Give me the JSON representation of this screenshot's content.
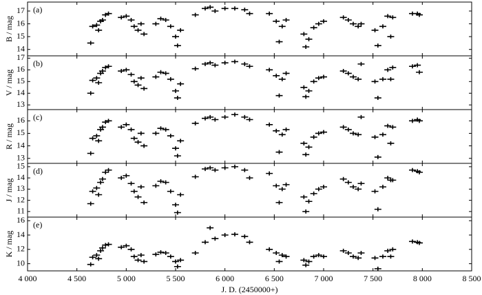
{
  "chart_data": [
    {
      "type": "scatter",
      "panel_label": "(a)",
      "y_label": "B / mag",
      "color": "#000000",
      "x": [
        4640,
        4660,
        4700,
        4720,
        4740,
        4760,
        4790,
        4820,
        4950,
        5000,
        5050,
        5080,
        5120,
        5150,
        5180,
        5300,
        5350,
        5400,
        5450,
        5500,
        5520,
        5550,
        5700,
        5800,
        5850,
        5900,
        6000,
        6100,
        6200,
        6250,
        6450,
        6520,
        6550,
        6580,
        6620,
        6800,
        6820,
        6850,
        6900,
        6950,
        7000,
        7200,
        7250,
        7300,
        7350,
        7380,
        7520,
        7550,
        7600,
        7650,
        7680,
        7700,
        7900,
        7950,
        7970
      ],
      "values": [
        14.5,
        15.8,
        15.9,
        15.5,
        16.2,
        16.3,
        16.7,
        16.8,
        16.5,
        16.6,
        16.3,
        15.8,
        15.5,
        16.0,
        15.2,
        16.0,
        16.4,
        16.3,
        15.8,
        15.0,
        14.3,
        15.5,
        16.7,
        17.2,
        17.3,
        17.0,
        17.2,
        17.2,
        17.1,
        16.8,
        16.8,
        16.2,
        14.6,
        15.8,
        16.3,
        15.2,
        14.2,
        14.8,
        15.7,
        16.0,
        16.2,
        16.5,
        16.3,
        16.0,
        15.8,
        16.0,
        15.5,
        14.3,
        15.8,
        16.6,
        15.0,
        16.5,
        16.8,
        16.8,
        16.7
      ],
      "ylim": [
        13.5,
        17.7
      ],
      "yticks": [
        14,
        15,
        16,
        17
      ]
    },
    {
      "type": "scatter",
      "panel_label": "(b)",
      "y_label": "V / mag",
      "color": "#000000",
      "x": [
        4640,
        4660,
        4700,
        4720,
        4740,
        4760,
        4790,
        4820,
        4950,
        5000,
        5050,
        5080,
        5120,
        5150,
        5180,
        5300,
        5350,
        5400,
        5450,
        5500,
        5520,
        5550,
        5700,
        5800,
        5850,
        5900,
        6000,
        6100,
        6200,
        6250,
        6450,
        6520,
        6550,
        6580,
        6620,
        6800,
        6820,
        6850,
        6900,
        6950,
        7000,
        7200,
        7250,
        7300,
        7350,
        7380,
        7520,
        7550,
        7600,
        7650,
        7680,
        7700,
        7900,
        7950,
        7970
      ],
      "values": [
        14.0,
        15.1,
        15.3,
        14.9,
        15.7,
        15.9,
        16.2,
        16.3,
        15.9,
        16.0,
        15.6,
        15.0,
        14.7,
        15.3,
        14.4,
        15.4,
        15.8,
        15.7,
        15.2,
        14.2,
        13.6,
        14.8,
        16.1,
        16.5,
        16.6,
        16.4,
        16.6,
        16.7,
        16.5,
        16.3,
        16.0,
        15.5,
        13.8,
        15.2,
        15.7,
        14.5,
        13.7,
        14.2,
        15.0,
        15.3,
        15.4,
        15.9,
        15.7,
        15.4,
        15.2,
        16.5,
        15.0,
        13.6,
        15.2,
        16.0,
        15.2,
        16.2,
        16.3,
        16.4,
        15.8
      ],
      "ylim": [
        12.6,
        17.2
      ],
      "yticks": [
        13,
        14,
        15,
        16,
        17
      ]
    },
    {
      "type": "scatter",
      "panel_label": "(c)",
      "y_label": "R / mag",
      "color": "#000000",
      "x": [
        4640,
        4660,
        4700,
        4720,
        4740,
        4760,
        4790,
        4820,
        4950,
        5000,
        5050,
        5080,
        5120,
        5150,
        5180,
        5300,
        5350,
        5400,
        5450,
        5500,
        5520,
        5550,
        5700,
        5800,
        5850,
        5900,
        6000,
        6100,
        6200,
        6250,
        6450,
        6520,
        6550,
        6580,
        6620,
        6800,
        6820,
        6850,
        6900,
        6950,
        7000,
        7200,
        7250,
        7300,
        7350,
        7380,
        7520,
        7550,
        7600,
        7650,
        7680,
        7700,
        7900,
        7950,
        7970
      ],
      "values": [
        13.4,
        14.6,
        14.8,
        14.4,
        15.3,
        15.5,
        15.9,
        16.0,
        15.5,
        15.7,
        15.3,
        14.6,
        14.3,
        15.0,
        14.0,
        15.0,
        15.4,
        15.3,
        14.8,
        13.8,
        13.2,
        14.4,
        15.8,
        16.2,
        16.3,
        16.1,
        16.3,
        16.5,
        16.3,
        16.1,
        15.7,
        15.2,
        13.5,
        14.9,
        15.3,
        14.2,
        13.3,
        13.9,
        14.7,
        15.0,
        15.1,
        15.5,
        15.3,
        15.0,
        14.9,
        16.3,
        14.7,
        13.1,
        14.9,
        15.6,
        14.2,
        15.5,
        16.0,
        16.1,
        16.0
      ],
      "ylim": [
        12.6,
        16.9
      ],
      "yticks": [
        13,
        14,
        15,
        16
      ]
    },
    {
      "type": "scatter",
      "panel_label": "(d)",
      "y_label": "J / mag",
      "color": "#000000",
      "x": [
        4640,
        4660,
        4700,
        4720,
        4740,
        4760,
        4790,
        4820,
        4950,
        5000,
        5050,
        5080,
        5120,
        5150,
        5180,
        5300,
        5350,
        5400,
        5450,
        5500,
        5520,
        5550,
        5700,
        5800,
        5850,
        5900,
        6000,
        6100,
        6200,
        6250,
        6450,
        6520,
        6550,
        6580,
        6620,
        6800,
        6820,
        6850,
        6900,
        6950,
        7000,
        7200,
        7250,
        7300,
        7350,
        7380,
        7520,
        7550,
        7600,
        7650,
        7680,
        7700,
        7900,
        7950,
        7970
      ],
      "values": [
        11.7,
        12.8,
        13.1,
        12.5,
        13.6,
        13.9,
        14.5,
        14.7,
        14.0,
        14.2,
        13.5,
        12.8,
        12.3,
        13.2,
        11.8,
        13.3,
        13.7,
        13.6,
        12.8,
        11.6,
        10.9,
        12.5,
        14.1,
        14.8,
        14.9,
        14.7,
        14.9,
        15.0,
        14.7,
        14.0,
        14.4,
        13.3,
        11.8,
        13.0,
        13.4,
        12.3,
        11.0,
        11.9,
        12.6,
        13.0,
        13.2,
        13.9,
        13.6,
        13.2,
        13.0,
        13.5,
        12.8,
        11.2,
        13.2,
        14.0,
        13.8,
        13.8,
        14.7,
        14.6,
        14.5
      ],
      "ylim": [
        10.5,
        15.3
      ],
      "yticks": [
        11,
        12,
        13,
        14,
        15
      ]
    },
    {
      "type": "scatter",
      "panel_label": "(e)",
      "y_label": "K / mag",
      "color": "#000000",
      "x": [
        4640,
        4660,
        4700,
        4720,
        4740,
        4760,
        4790,
        4820,
        4950,
        5000,
        5050,
        5080,
        5120,
        5150,
        5180,
        5300,
        5350,
        5400,
        5450,
        5500,
        5520,
        5550,
        5700,
        5800,
        5850,
        5900,
        6000,
        6100,
        6200,
        6250,
        6450,
        6520,
        6550,
        6580,
        6620,
        6800,
        6820,
        6850,
        6900,
        6950,
        7000,
        7200,
        7250,
        7300,
        7350,
        7380,
        7520,
        7550,
        7600,
        7650,
        7680,
        7700,
        7900,
        7950,
        7970
      ],
      "values": [
        9.9,
        10.9,
        11.2,
        10.7,
        11.8,
        12.2,
        12.6,
        12.7,
        12.3,
        12.5,
        12.0,
        11.0,
        10.5,
        11.2,
        10.3,
        11.3,
        11.6,
        11.5,
        11.0,
        10.3,
        9.6,
        10.5,
        11.5,
        13.0,
        15.0,
        13.5,
        14.0,
        14.1,
        13.8,
        13.0,
        12.0,
        11.5,
        10.3,
        11.2,
        11.0,
        10.5,
        9.8,
        10.3,
        11.0,
        11.2,
        11.0,
        11.8,
        11.5,
        11.0,
        10.8,
        11.5,
        10.8,
        9.3,
        11.0,
        11.8,
        11.0,
        12.0,
        13.1,
        13.0,
        12.9
      ],
      "ylim": [
        9,
        16.5
      ],
      "yticks": [
        10,
        12,
        14,
        16
      ],
      "x_label": "J. D. (2450000+)",
      "xlim": [
        4000,
        8500
      ],
      "xticks": [
        {
          "value": 4000,
          "label": "4 000"
        },
        {
          "value": 4500,
          "label": "4 500"
        },
        {
          "value": 5000,
          "label": "5 000"
        },
        {
          "value": 5500,
          "label": "5 500"
        },
        {
          "value": 6000,
          "label": "6 000"
        },
        {
          "value": 6500,
          "label": "6 500"
        },
        {
          "value": 7000,
          "label": "7 000"
        },
        {
          "value": 7500,
          "label": "7 500"
        },
        {
          "value": 8000,
          "label": "8 000"
        },
        {
          "value": 8500,
          "label": "8 500"
        }
      ]
    }
  ]
}
